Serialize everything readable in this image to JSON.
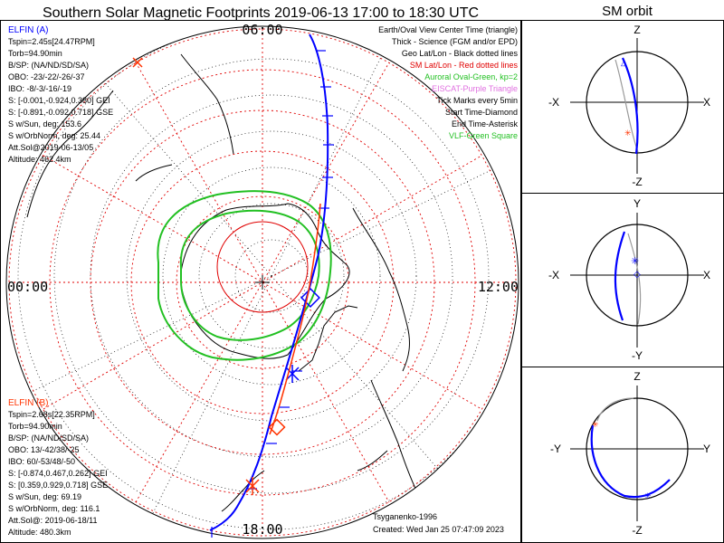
{
  "title": "Southern Solar Magnetic Footprints 2019-06-13 17:00 to 18:30 UTC",
  "orbit_title": "SM orbit",
  "time_labels": {
    "top": "06:00",
    "left": "00:00",
    "right": "12:00",
    "bottom": "18:00"
  },
  "elfin_a": {
    "name": "ELFIN (A)",
    "lines": [
      "Tspin=2.45s[24.47RPM]",
      "Torb=94.90min",
      "B/SP: (NA/ND/SD/SA)",
      "OBO: -23/-22/-26/-37",
      "IBO: -8/-3/-16/-19",
      "S: [-0.001,-0.924,0.380] GEI",
      "S: [-0.891,-0.092,0.718] GSE",
      "S w/Sun, deg: 153.6",
      "S w/OrbNorm, deg: 25.44",
      "Att.Sol@2019-06-13/05",
      "Altitude: 462.4km"
    ]
  },
  "elfin_b": {
    "name": "ELFIN (B)",
    "lines": [
      "Tspin=2.68s[22.35RPM]",
      "Torb=94.90min",
      "B/SP: (NA/ND/SD/SA)",
      "OBO: 13/-42/38/-25",
      "IBO: 60/-53/48/-50",
      "S: [-0.874,0.467,0.262] GEI",
      "S: [0.359,0.929,0.718] GSE",
      "S w/Sun, deg: 69.19",
      "S w/OrbNorm, deg: 116.1",
      "Att.Sol@: 2019-06-18/11",
      "Altitude: 480.3km"
    ]
  },
  "legend": [
    {
      "text": "Earth/Oval View Center Time (triangle)",
      "color": "#000000"
    },
    {
      "text": "Thick - Science (FGM and/or EPD)",
      "color": "#000000"
    },
    {
      "text": "Geo Lat/Lon - Black dotted lines",
      "color": "#000000"
    },
    {
      "text": "SM Lat/Lon - Red dotted lines",
      "color": "#e00000"
    },
    {
      "text": "Auroral Oval-Green, kp=2",
      "color": "#22c022"
    },
    {
      "text": "EISCAT-Purple Triangle",
      "color": "#e070e0"
    },
    {
      "text": "Tick Marks every 5min",
      "color": "#000000"
    },
    {
      "text": "Start Time-Diamond",
      "color": "#000000"
    },
    {
      "text": "End Time-Asterisk",
      "color": "#000000"
    },
    {
      "text": "VLF-Green Square",
      "color": "#22c022"
    }
  ],
  "credits": {
    "author": "Tsyganenko-1996",
    "created": "Created: Wed Jan 25 07:47:09 2023"
  },
  "orbit_panels": [
    {
      "top": "Z",
      "bottom": "-Z",
      "left": "-X",
      "right": "X"
    },
    {
      "top": "Y",
      "bottom": "-Y",
      "left": "-X",
      "right": "X"
    },
    {
      "top": "Z",
      "bottom": "-Z",
      "left": "-Y",
      "right": "Y"
    }
  ],
  "colors": {
    "elfin_a": "#0000ff",
    "elfin_b": "#ff3300",
    "sm_grid": "#e00000",
    "oval": "#22c022",
    "geo_grid": "#000000"
  }
}
